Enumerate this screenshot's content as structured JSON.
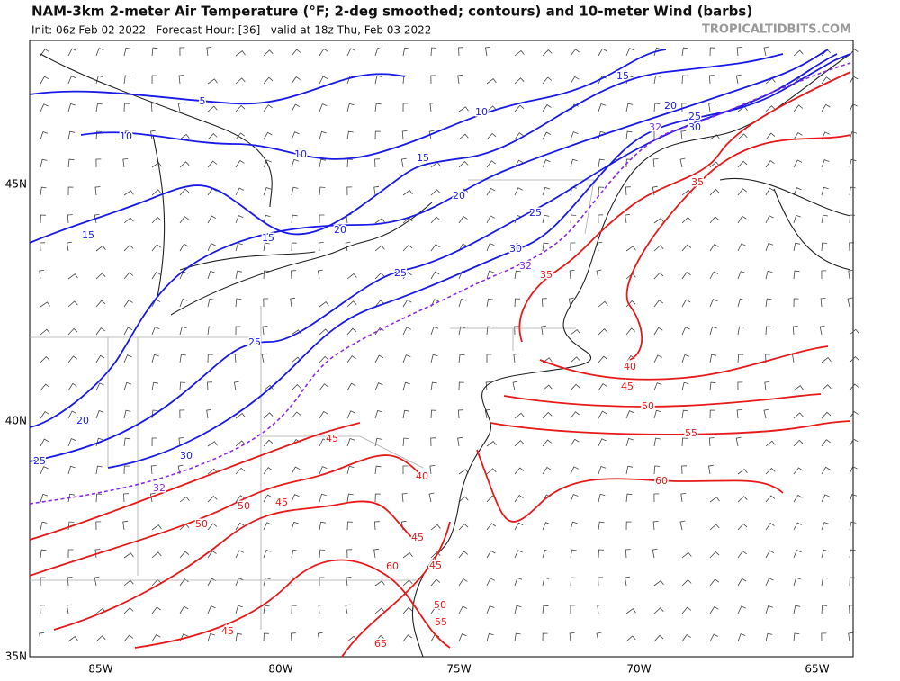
{
  "header": {
    "title": "NAM-3km 2-meter Air Temperature (°F; 2-deg smoothed; contours) and 10-meter Wind (barbs)",
    "subtitle": "Init: 06z Feb 02 2022   Forecast Hour: [36]   valid at 18z Thu, Feb 03 2022",
    "brand": "TROPICALTIDBITS.COM"
  },
  "map": {
    "lat_labels": [
      "45N",
      "40N",
      "35N"
    ],
    "lon_labels": [
      "85W",
      "80W",
      "75W",
      "70W",
      "65W"
    ],
    "contour_labels": {
      "blue": [
        5,
        10,
        10,
        10,
        15,
        15,
        15,
        15,
        20,
        20,
        20,
        20,
        25,
        25,
        25,
        25,
        25,
        30,
        30,
        30
      ],
      "purple": [
        32,
        32,
        32
      ],
      "red": [
        35,
        35,
        40,
        45,
        50,
        55,
        60,
        45,
        40,
        50,
        45,
        50,
        45,
        45,
        60,
        50,
        55,
        45,
        65
      ]
    }
  }
}
